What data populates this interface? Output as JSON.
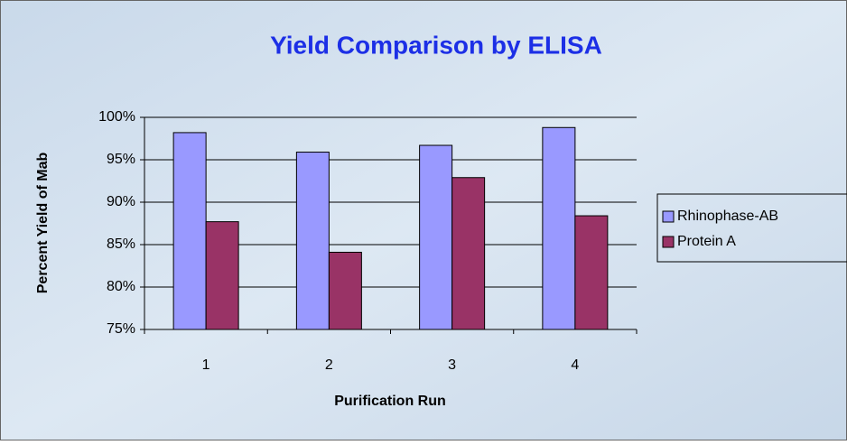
{
  "chart_data": {
    "type": "bar",
    "title": "Yield Comparison by ELISA",
    "x_label": "Purification Run",
    "y_label": "Percent Yield of Mab",
    "categories": [
      "1",
      "2",
      "3",
      "4"
    ],
    "series": [
      {
        "name": "Rhinophase-AB",
        "color": "#9999ff",
        "values": [
          98.2,
          95.9,
          96.7,
          98.8
        ]
      },
      {
        "name": "Protein A",
        "color": "#993366",
        "values": [
          87.7,
          84.1,
          92.9,
          88.4
        ]
      }
    ],
    "ylim": [
      75,
      100
    ],
    "yticks": [
      {
        "value": 75,
        "label": "75%"
      },
      {
        "value": 80,
        "label": "80%"
      },
      {
        "value": 85,
        "label": "85%"
      },
      {
        "value": 90,
        "label": "90%"
      },
      {
        "value": 95,
        "label": "95%"
      },
      {
        "value": 100,
        "label": "100%"
      }
    ],
    "grid": true,
    "legend": "right"
  }
}
